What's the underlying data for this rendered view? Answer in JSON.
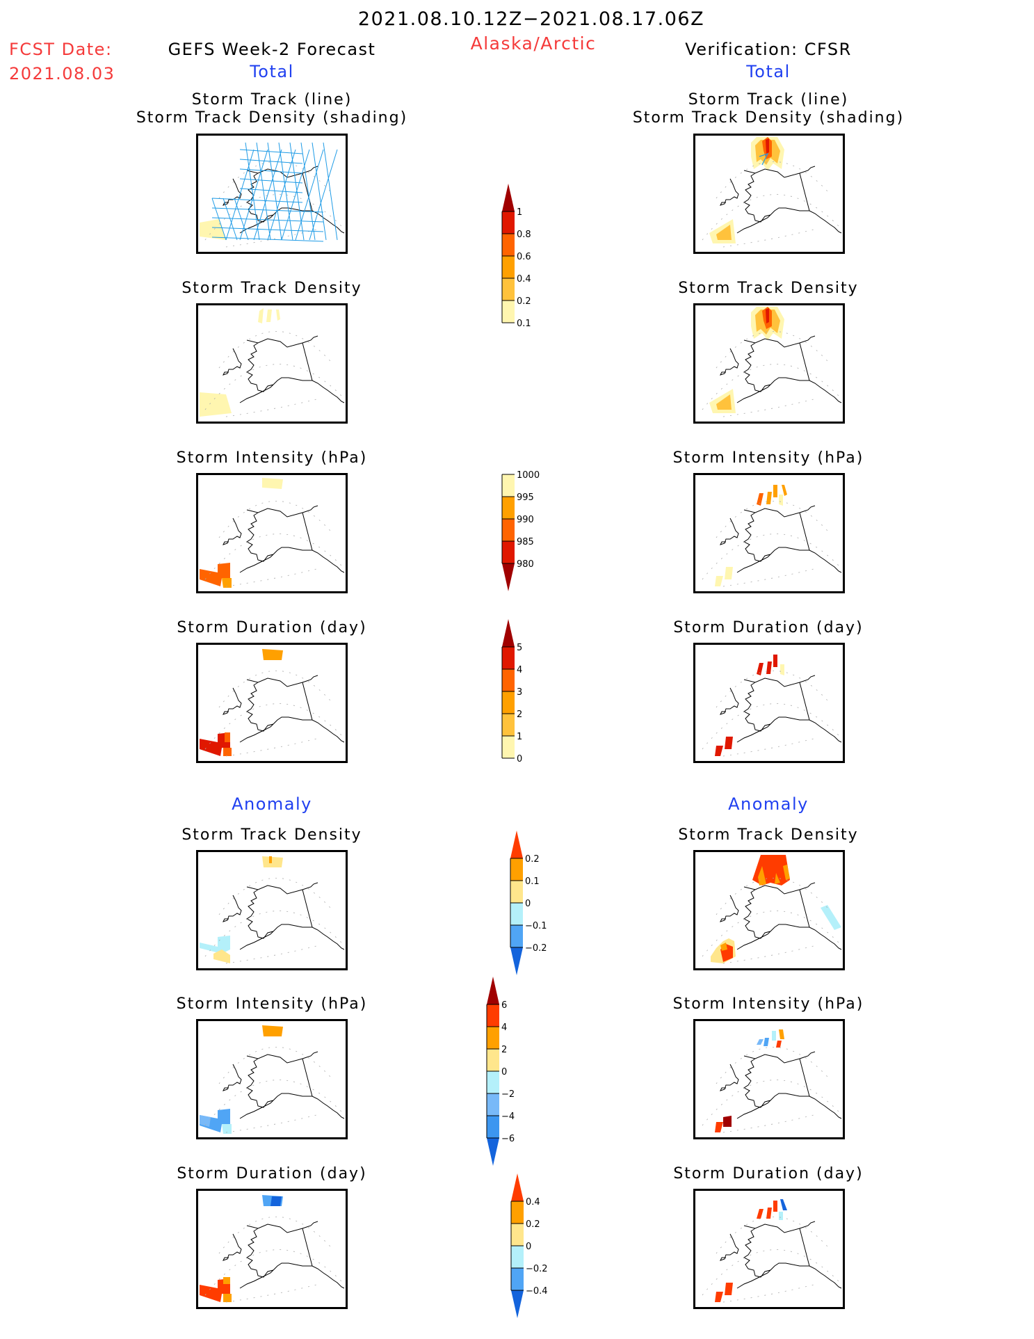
{
  "header": {
    "period": "2021.08.10.12Z−2021.08.17.06Z",
    "region": "Alaska/Arctic",
    "fcst_label": "FCST Date:",
    "fcst_date": "2021.08.03",
    "left_title": "GEFS Week-2 Forecast",
    "right_title": "Verification: CFSR",
    "total_label_left": "Total",
    "total_label_right": "Total",
    "anomaly_label_left": "Anomaly",
    "anomaly_label_right": "Anomaly"
  },
  "colors": {
    "title_red": "#f53a3a",
    "section_blue": "#2040f0",
    "track_line": "#1e9be6"
  },
  "panels": {
    "titles": {
      "track_line": "Storm Track (line)",
      "track_shading": "Storm Track Density (shading)",
      "density": "Storm Track Density",
      "intensity": "Storm Intensity (hPa)",
      "duration": "Storm Duration (day)"
    }
  },
  "colorbars": [
    {
      "name": "track-density",
      "ticks": [
        "0.1",
        "0.2",
        "0.4",
        "0.6",
        "0.8",
        "1"
      ],
      "colors": [
        "#fff6b0",
        "#ffc23c",
        "#ffa000",
        "#ff6400",
        "#e01800"
      ],
      "top_arrow": "#a00000",
      "bottom_arrow": null
    },
    {
      "name": "intensity",
      "ticks": [
        "980",
        "985",
        "990",
        "995",
        "1000"
      ],
      "colors": [
        "#e01800",
        "#ff6400",
        "#ffa000",
        "#fff6b0"
      ],
      "top_arrow": null,
      "bottom_arrow": "#a00000"
    },
    {
      "name": "duration",
      "ticks": [
        "0",
        "1",
        "2",
        "3",
        "4",
        "5"
      ],
      "colors": [
        "#fff6b0",
        "#ffc23c",
        "#ffa000",
        "#ff6400",
        "#e01800"
      ],
      "top_arrow": "#a00000",
      "bottom_arrow": null
    },
    {
      "name": "anom-density",
      "ticks": [
        "−0.2",
        "−0.1",
        "0",
        "0.1",
        "0.2"
      ],
      "colors": [
        "#50a5f5",
        "#b4f0fa",
        "#ffe68c",
        "#ffa000"
      ],
      "top_arrow": "#ff3c00",
      "bottom_arrow": "#1464dc"
    },
    {
      "name": "anom-intensity",
      "ticks": [
        "−6",
        "−4",
        "−2",
        "0",
        "2",
        "4",
        "6"
      ],
      "colors": [
        "#3c96f0",
        "#78b9f8",
        "#b4f0fa",
        "#ffe68c",
        "#ffa000",
        "#ff3c00"
      ],
      "top_arrow": "#a00000",
      "bottom_arrow": "#1464dc"
    },
    {
      "name": "anom-duration",
      "ticks": [
        "−0.4",
        "−0.2",
        "0",
        "0.2",
        "0.4"
      ],
      "colors": [
        "#50a5f5",
        "#b4f0fa",
        "#ffe68c",
        "#ffa000"
      ],
      "top_arrow": "#ff3c00",
      "bottom_arrow": "#1464dc"
    }
  ]
}
